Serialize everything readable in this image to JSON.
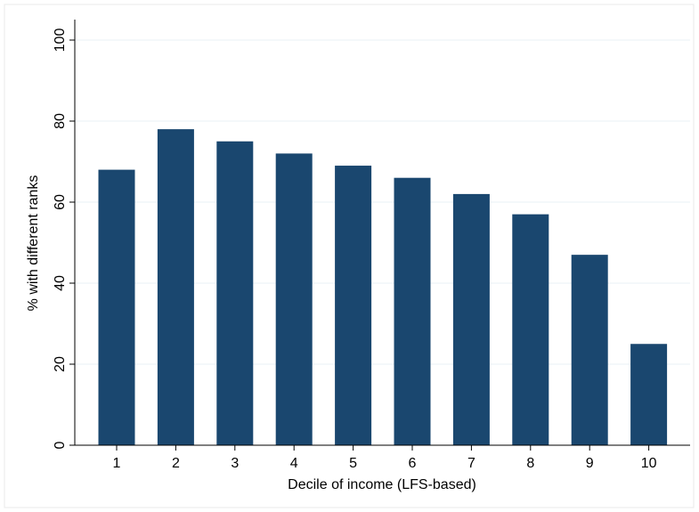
{
  "chart_data": {
    "type": "bar",
    "x_label": "Decile of income (LFS-based)",
    "y_label": "% with different ranks",
    "categories": [
      "1",
      "2",
      "3",
      "4",
      "5",
      "6",
      "7",
      "8",
      "9",
      "10"
    ],
    "values": [
      68,
      78,
      75,
      72,
      69,
      66,
      62,
      57,
      47,
      25
    ],
    "color": "#1a476f",
    "ylim": [
      0,
      100
    ],
    "yticks": [
      0,
      20,
      40,
      60,
      80,
      100
    ],
    "grid": true
  }
}
